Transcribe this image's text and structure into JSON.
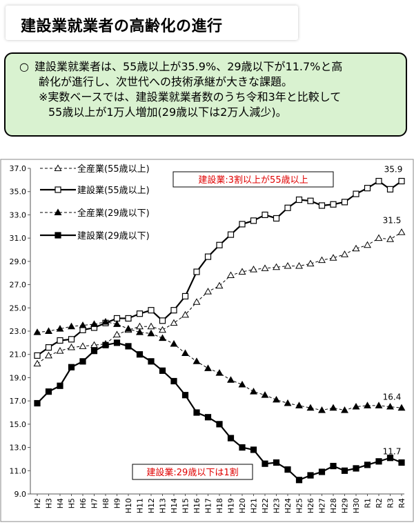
{
  "page_title": "建設業就業者の高齢化の進行",
  "summary": {
    "bullet": "○",
    "line1": "建設業就業者は、55歳以上が35.9%、29歳以下が11.7%と高",
    "line2": "齢化が進行し、次世代への技術承継が大きな課題。",
    "line3": "※実数ベースでは、建設業就業者数のうち令和3年と比較して",
    "line4": "55歳以上が1万人増加(29歳以下は2万人減少)。"
  },
  "colors": {
    "summary_bg": "#d9f2d0",
    "callout_text": "#e00000",
    "line": "#000000"
  },
  "chart_data": {
    "type": "line",
    "x": [
      "H2",
      "H3",
      "H4",
      "H5",
      "H6",
      "H7",
      "H8",
      "H9",
      "H10",
      "H11",
      "H12",
      "H13",
      "H14",
      "H15",
      "H16",
      "H17",
      "H18",
      "H19",
      "H20",
      "H21",
      "H22",
      "H23",
      "H24",
      "H25",
      "H26",
      "H27",
      "H28",
      "H29",
      "H30",
      "R1",
      "R2",
      "R3",
      "R4"
    ],
    "ylim": [
      9.0,
      37.0
    ],
    "yticks": [
      "9.0",
      "11.0",
      "13.0",
      "15.0",
      "17.0",
      "19.0",
      "21.0",
      "23.0",
      "25.0",
      "27.0",
      "29.0",
      "31.0",
      "33.0",
      "35.0",
      "37.0"
    ],
    "series": [
      {
        "name": "全産業(55歳以上)",
        "style": "dashed",
        "marker": "triangle-open",
        "values": [
          20.2,
          20.9,
          21.3,
          21.6,
          21.7,
          21.8,
          21.9,
          22.7,
          23.1,
          23.4,
          23.4,
          23.1,
          23.7,
          24.4,
          25.5,
          26.4,
          26.9,
          27.8,
          28.1,
          28.3,
          28.4,
          28.5,
          28.6,
          28.6,
          28.8,
          29.1,
          29.3,
          29.6,
          30.1,
          30.4,
          31.0,
          30.9,
          31.5
        ]
      },
      {
        "name": "建設業(55歳以上)",
        "style": "solid",
        "marker": "square-open",
        "values": [
          20.9,
          21.6,
          22.2,
          22.3,
          23.1,
          23.3,
          23.7,
          24.1,
          24.1,
          24.5,
          24.8,
          23.9,
          24.8,
          26.0,
          28.1,
          29.4,
          30.4,
          31.3,
          32.2,
          32.5,
          33.0,
          32.7,
          33.6,
          34.3,
          34.2,
          33.8,
          33.9,
          34.1,
          34.8,
          35.3,
          35.9,
          35.2,
          35.9
        ]
      },
      {
        "name": "全産業(29歳以下)",
        "style": "dashed",
        "marker": "triangle-filled",
        "values": [
          22.9,
          23.0,
          23.2,
          23.4,
          23.5,
          23.6,
          23.8,
          23.6,
          23.2,
          22.9,
          22.8,
          22.4,
          21.9,
          21.1,
          20.4,
          19.8,
          19.4,
          18.8,
          18.4,
          17.8,
          17.5,
          17.1,
          16.8,
          16.6,
          16.4,
          16.2,
          16.4,
          16.2,
          16.5,
          16.6,
          16.6,
          16.5,
          16.4
        ]
      },
      {
        "name": "建設業(29歳以下)",
        "style": "solid",
        "marker": "square-filled",
        "values": [
          16.8,
          17.8,
          18.3,
          19.9,
          20.4,
          21.3,
          21.8,
          22.0,
          21.7,
          21.0,
          20.4,
          19.6,
          18.7,
          17.5,
          16.0,
          15.6,
          15.0,
          13.8,
          13.0,
          12.8,
          11.6,
          11.7,
          11.1,
          10.2,
          10.6,
          10.9,
          11.4,
          11.0,
          11.2,
          11.5,
          11.8,
          12.1,
          11.7
        ]
      }
    ],
    "end_labels": [
      "35.9",
      "31.5",
      "16.4",
      "11.7"
    ],
    "annotations": [
      "建設業:3割以上が55歳以上",
      "建設業:29歳以下は1割"
    ]
  }
}
